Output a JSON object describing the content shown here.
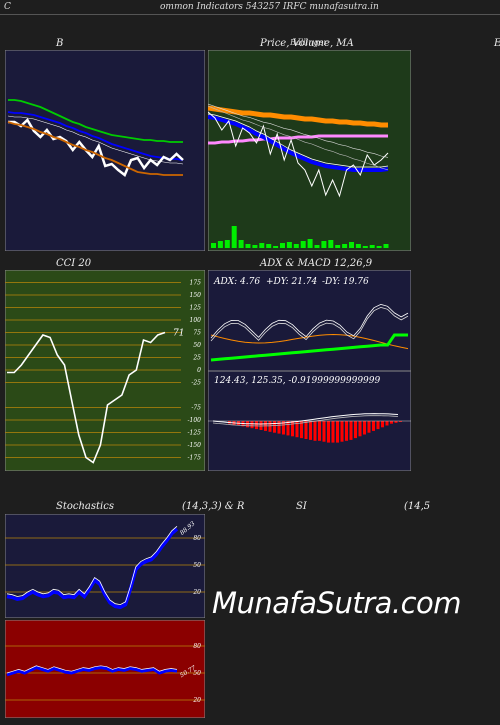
{
  "page": {
    "corner_left": "C",
    "header_text": "ommon  Indicators 543257 IRFC munafasutra.in",
    "watermark": "MunafaSutra.com"
  },
  "titles": {
    "bollinger": "B",
    "price": "Price,  Volume,  MA",
    "price_overlay": "Ballinger",
    "cci": "CCI 20",
    "adx_macd": "ADX  & MACD 12,26,9",
    "stoch_left": "Stochastics",
    "stoch_mid": "(14,3,3) & R",
    "stoch_si": "SI",
    "stoch_right": "(14,5",
    "right_cut": "E"
  },
  "colors": {
    "navy": "#1a1a3a",
    "green_panel": "#1e3a1a",
    "cci_bg": "#2b4a17",
    "red_panel": "#8b0000",
    "orange": "#ff8c00",
    "blue": "#0000ff",
    "lime": "#00ff00"
  },
  "chart_data": [
    {
      "type": "line",
      "name": "bollinger",
      "series": [
        {
          "color": "#00cc00",
          "values": [
            90,
            90,
            91,
            93,
            95,
            97,
            100,
            103,
            106,
            109,
            112,
            114,
            117,
            119,
            121,
            123,
            125,
            126,
            127,
            128,
            129,
            130,
            130,
            131,
            131,
            132,
            132,
            132
          ]
        },
        {
          "color": "#0000ff",
          "values": [
            102,
            103,
            103,
            104,
            105,
            107,
            109,
            111,
            113,
            116,
            118,
            121,
            123,
            126,
            128,
            131,
            134,
            136,
            138,
            140,
            142,
            144,
            146,
            147,
            148,
            149,
            149,
            150
          ]
        },
        {
          "color": "#ffffff",
          "values": [
            112,
            112,
            116,
            110,
            121,
            127,
            120,
            129,
            127,
            131,
            140,
            132,
            140,
            147,
            136,
            156,
            154,
            160,
            165,
            150,
            148,
            158,
            150,
            155,
            147,
            150,
            144,
            150
          ]
        },
        {
          "color": "#cc6600",
          "values": [
            112,
            114,
            115,
            117,
            119,
            122,
            124,
            127,
            129,
            132,
            135,
            137,
            140,
            142,
            145,
            148,
            150,
            153,
            156,
            159,
            162,
            163,
            164,
            164,
            165,
            165,
            165,
            165
          ]
        }
      ]
    },
    {
      "type": "line",
      "name": "price-volume-ma",
      "series": [
        {
          "color": "#ff8c00",
          "values": [
            108,
            109,
            110,
            111,
            112,
            113,
            113,
            114,
            115,
            115,
            116,
            117,
            117,
            118,
            119,
            119,
            120,
            121,
            121,
            122,
            122,
            123,
            123,
            124,
            124,
            125,
            125
          ]
        },
        {
          "color": "#ff88ff",
          "values": [
            143,
            143,
            142,
            142,
            141,
            141,
            140,
            140,
            139,
            139,
            138,
            138,
            138,
            137,
            137,
            137,
            136,
            136,
            136,
            136,
            136,
            136,
            136,
            136,
            136,
            136,
            136
          ]
        },
        {
          "color": "#0000ff",
          "values": [
            117,
            118,
            120,
            122,
            124,
            127,
            130,
            134,
            137,
            141,
            145,
            149,
            153,
            156,
            159,
            162,
            164,
            166,
            167,
            168,
            169,
            170,
            170,
            170,
            170,
            170,
            169
          ]
        },
        {
          "color": "#ffffff",
          "values": [
            112,
            118,
            130,
            121,
            146,
            128,
            133,
            143,
            126,
            154,
            134,
            160,
            140,
            163,
            170,
            186,
            170,
            195,
            180,
            196,
            170,
            165,
            175,
            155,
            165,
            160,
            153
          ]
        }
      ],
      "volume": [
        5,
        7,
        8,
        22,
        8,
        4,
        3,
        5,
        4,
        2,
        5,
        6,
        4,
        7,
        9,
        3,
        7,
        8,
        3,
        4,
        6,
        4,
        2,
        3,
        2,
        4
      ]
    },
    {
      "type": "line",
      "name": "cci",
      "values": [
        -5,
        -5,
        10,
        30,
        50,
        70,
        65,
        30,
        10,
        -60,
        -130,
        -175,
        -185,
        -150,
        -70,
        -60,
        -50,
        -10,
        0,
        60,
        55,
        70,
        75
      ],
      "ylim": [
        -175,
        175
      ],
      "ticks": [
        175,
        150,
        125,
        100,
        75,
        50,
        25,
        0,
        -25,
        -75,
        -100,
        -125,
        -150,
        -175
      ],
      "label": "71"
    },
    {
      "type": "line",
      "name": "adx",
      "values": {
        "adx": 4.76,
        "plus_di": 21.74,
        "minus_di": 19.76
      },
      "labels": [
        "ADX: 4.76",
        "+DY: 21.74",
        "-DY: 19.76"
      ]
    },
    {
      "type": "bar",
      "name": "macd",
      "values": {
        "macd": 124.43,
        "signal": 125.35,
        "hist": -0.91999999999999
      },
      "label": "124.43,  125.35,  -0.91999999999999",
      "bars": [
        -3,
        -4,
        -5,
        -6,
        -7,
        -8,
        -9,
        -10,
        -11,
        -12,
        -13,
        -14,
        -15,
        -16,
        -17,
        -18,
        -19,
        -20,
        -21,
        -22,
        -22,
        -23,
        -24,
        -24,
        -24,
        -23,
        -22,
        -21,
        -19,
        -17,
        -15,
        -13,
        -11,
        -9,
        -7,
        -5,
        -3,
        -2,
        -1,
        0
      ]
    },
    {
      "type": "line",
      "name": "stochastics",
      "values": [
        15,
        14,
        12,
        13,
        17,
        20,
        17,
        15,
        16,
        20,
        19,
        14,
        15,
        14,
        20,
        15,
        23,
        33,
        29,
        17,
        8,
        4,
        3,
        6,
        24,
        45,
        51,
        54,
        56,
        62,
        70,
        77,
        85,
        90
      ],
      "ticks": [
        80,
        50,
        20
      ],
      "label": "88.93",
      "ylim": [
        0,
        100
      ]
    },
    {
      "type": "line",
      "name": "rsi",
      "values": [
        48,
        50,
        52,
        50,
        53,
        56,
        54,
        52,
        55,
        53,
        51,
        50,
        52,
        54,
        53,
        55,
        56,
        55,
        52,
        54,
        53,
        55,
        54,
        52,
        53,
        54,
        50,
        52,
        53,
        52
      ],
      "ticks": [
        80,
        50,
        20
      ],
      "label": "50.77",
      "ylim": [
        0,
        100
      ]
    }
  ]
}
